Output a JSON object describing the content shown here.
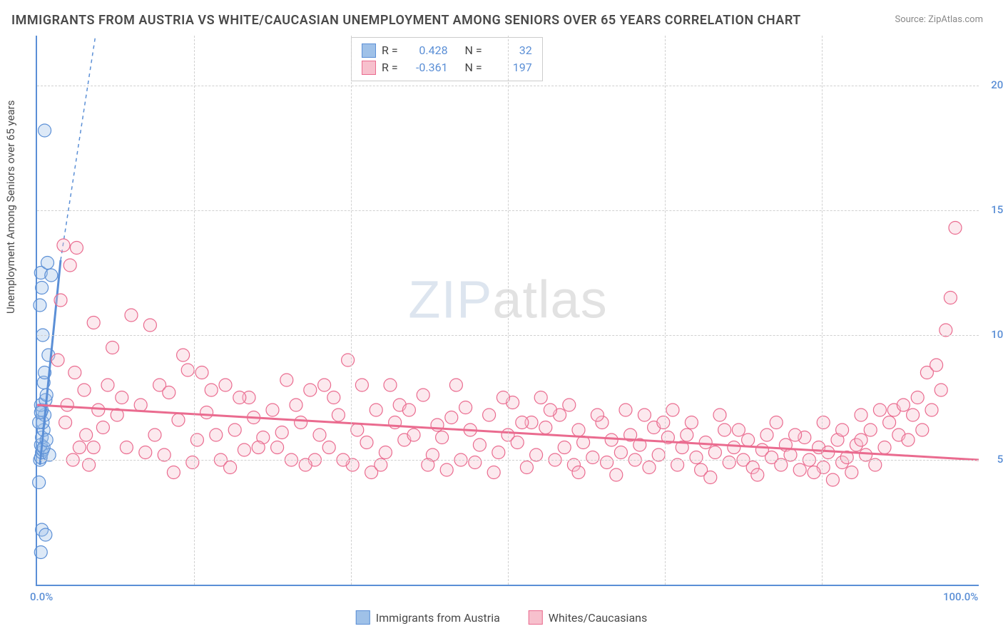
{
  "title": "IMMIGRANTS FROM AUSTRIA VS WHITE/CAUCASIAN UNEMPLOYMENT AMONG SENIORS OVER 65 YEARS CORRELATION CHART",
  "source": "Source: ZipAtlas.com",
  "watermark_bold": "ZIP",
  "watermark_thin": "atlas",
  "y_axis_title": "Unemployment Among Seniors over 65 years",
  "chart": {
    "type": "scatter",
    "xlim": [
      0,
      100
    ],
    "ylim": [
      0,
      22
    ],
    "x_ticks": [
      0,
      100
    ],
    "x_tick_labels": [
      "0.0%",
      "100.0%"
    ],
    "x_minor_ticks": [
      16.67,
      33.33,
      50,
      66.67,
      83.33
    ],
    "y_ticks": [
      5,
      10,
      15,
      20
    ],
    "y_tick_labels": [
      "5.0%",
      "10.0%",
      "15.0%",
      "20.0%"
    ],
    "background_color": "#ffffff",
    "grid_color": "#d0d0d0",
    "axis_color": "#5b8fd6",
    "marker_radius": 9,
    "marker_opacity": 0.35,
    "series": [
      {
        "name": "Immigrants from Austria",
        "color_fill": "#9fc1e8",
        "color_stroke": "#5b8fd6",
        "R": 0.428,
        "N": 32,
        "trend": {
          "x1": 0.3,
          "y1": 4.8,
          "x2": 2.5,
          "y2": 13.0,
          "dashed_extend_x2": 6.2,
          "dashed_extend_y2": 22.0
        },
        "points": [
          [
            0.2,
            4.1
          ],
          [
            0.3,
            5.0
          ],
          [
            0.4,
            5.1
          ],
          [
            0.5,
            5.3
          ],
          [
            0.6,
            5.4
          ],
          [
            0.4,
            5.6
          ],
          [
            0.5,
            5.9
          ],
          [
            0.7,
            6.2
          ],
          [
            0.6,
            6.5
          ],
          [
            0.8,
            6.8
          ],
          [
            0.5,
            7.0
          ],
          [
            0.4,
            7.2
          ],
          [
            0.9,
            7.4
          ],
          [
            1.0,
            7.6
          ],
          [
            0.7,
            8.1
          ],
          [
            0.8,
            8.5
          ],
          [
            1.2,
            9.2
          ],
          [
            0.6,
            10.0
          ],
          [
            0.3,
            11.2
          ],
          [
            0.5,
            11.9
          ],
          [
            0.4,
            12.5
          ],
          [
            1.5,
            12.4
          ],
          [
            1.1,
            12.9
          ],
          [
            0.8,
            18.2
          ],
          [
            0.5,
            2.2
          ],
          [
            0.9,
            2.0
          ],
          [
            0.4,
            1.3
          ],
          [
            1.3,
            5.2
          ],
          [
            0.7,
            5.5
          ],
          [
            0.2,
            6.5
          ],
          [
            0.4,
            6.9
          ],
          [
            1.0,
            5.8
          ]
        ]
      },
      {
        "name": "Whites/Caucasians",
        "color_fill": "#f7c0cd",
        "color_stroke": "#ea6b8f",
        "R": -0.361,
        "N": 197,
        "trend": {
          "x1": 0,
          "y1": 7.2,
          "x2": 100,
          "y2": 5.0
        },
        "points": [
          [
            2.5,
            11.4
          ],
          [
            2.8,
            13.6
          ],
          [
            3,
            6.5
          ],
          [
            3.2,
            7.2
          ],
          [
            3.5,
            12.8
          ],
          [
            4,
            8.5
          ],
          [
            4.5,
            5.5
          ],
          [
            5,
            7.8
          ],
          [
            5.2,
            6.0
          ],
          [
            6,
            10.5
          ],
          [
            6.5,
            7.0
          ],
          [
            7,
            6.3
          ],
          [
            7.5,
            8.0
          ],
          [
            8,
            9.5
          ],
          [
            8.5,
            6.8
          ],
          [
            9,
            7.5
          ],
          [
            10,
            10.8
          ],
          [
            11,
            7.2
          ],
          [
            12,
            10.4
          ],
          [
            12.5,
            6.0
          ],
          [
            13,
            8.0
          ],
          [
            13.5,
            5.2
          ],
          [
            14,
            7.7
          ],
          [
            15,
            6.6
          ],
          [
            16,
            8.6
          ],
          [
            16.5,
            4.9
          ],
          [
            17,
            5.8
          ],
          [
            18,
            6.9
          ],
          [
            18.5,
            7.8
          ],
          [
            19,
            6.0
          ],
          [
            20,
            8.0
          ],
          [
            21,
            6.2
          ],
          [
            22,
            5.4
          ],
          [
            22.5,
            7.5
          ],
          [
            23,
            6.7
          ],
          [
            24,
            5.9
          ],
          [
            25,
            7.0
          ],
          [
            26,
            6.1
          ],
          [
            27,
            5.0
          ],
          [
            28,
            6.5
          ],
          [
            29,
            7.8
          ],
          [
            30,
            6.0
          ],
          [
            30.5,
            8.0
          ],
          [
            31,
            5.5
          ],
          [
            32,
            6.8
          ],
          [
            33,
            9.0
          ],
          [
            33.5,
            4.8
          ],
          [
            34,
            6.2
          ],
          [
            35,
            5.7
          ],
          [
            36,
            7.0
          ],
          [
            37,
            5.3
          ],
          [
            38,
            6.5
          ],
          [
            38.5,
            7.2
          ],
          [
            39,
            5.8
          ],
          [
            40,
            6.0
          ],
          [
            41,
            7.6
          ],
          [
            42,
            5.2
          ],
          [
            42.5,
            6.4
          ],
          [
            43,
            5.9
          ],
          [
            44,
            6.7
          ],
          [
            45,
            5.0
          ],
          [
            45.5,
            7.1
          ],
          [
            46,
            6.2
          ],
          [
            47,
            5.6
          ],
          [
            48,
            6.8
          ],
          [
            49,
            5.3
          ],
          [
            50,
            6.0
          ],
          [
            50.5,
            7.3
          ],
          [
            51,
            5.7
          ],
          [
            52,
            4.7
          ],
          [
            52.5,
            6.5
          ],
          [
            53,
            5.2
          ],
          [
            54,
            6.3
          ],
          [
            55,
            5.0
          ],
          [
            55.5,
            6.8
          ],
          [
            56,
            5.5
          ],
          [
            57,
            4.8
          ],
          [
            57.5,
            6.2
          ],
          [
            58,
            5.7
          ],
          [
            59,
            5.1
          ],
          [
            60,
            6.5
          ],
          [
            60.5,
            4.9
          ],
          [
            61,
            5.8
          ],
          [
            62,
            5.3
          ],
          [
            63,
            6.0
          ],
          [
            63.5,
            5.0
          ],
          [
            64,
            5.6
          ],
          [
            65,
            4.7
          ],
          [
            65.5,
            6.3
          ],
          [
            66,
            5.2
          ],
          [
            67,
            5.9
          ],
          [
            68,
            4.8
          ],
          [
            68.5,
            5.5
          ],
          [
            69,
            6.0
          ],
          [
            70,
            5.1
          ],
          [
            70.5,
            4.6
          ],
          [
            71,
            5.7
          ],
          [
            72,
            5.3
          ],
          [
            73,
            6.2
          ],
          [
            73.5,
            4.9
          ],
          [
            74,
            5.5
          ],
          [
            75,
            5.0
          ],
          [
            75.5,
            5.8
          ],
          [
            76,
            4.7
          ],
          [
            77,
            5.4
          ],
          [
            77.5,
            6.0
          ],
          [
            78,
            5.1
          ],
          [
            79,
            4.8
          ],
          [
            79.5,
            5.6
          ],
          [
            80,
            5.2
          ],
          [
            81,
            4.6
          ],
          [
            81.5,
            5.9
          ],
          [
            82,
            5.0
          ],
          [
            83,
            5.5
          ],
          [
            83.5,
            4.7
          ],
          [
            84,
            5.3
          ],
          [
            85,
            5.8
          ],
          [
            85.5,
            4.9
          ],
          [
            86,
            5.1
          ],
          [
            87,
            5.6
          ],
          [
            87.5,
            6.8
          ],
          [
            88,
            5.2
          ],
          [
            88.5,
            6.2
          ],
          [
            89,
            4.8
          ],
          [
            89.5,
            7.0
          ],
          [
            90,
            5.5
          ],
          [
            90.5,
            6.5
          ],
          [
            91,
            7.0
          ],
          [
            91.5,
            6.0
          ],
          [
            92,
            7.2
          ],
          [
            92.5,
            5.8
          ],
          [
            93,
            6.8
          ],
          [
            93.5,
            7.5
          ],
          [
            94,
            6.2
          ],
          [
            94.5,
            8.5
          ],
          [
            95,
            7.0
          ],
          [
            95.5,
            8.8
          ],
          [
            96,
            7.8
          ],
          [
            96.5,
            10.2
          ],
          [
            97,
            11.5
          ],
          [
            97.5,
            14.3
          ],
          [
            4.2,
            13.5
          ],
          [
            2.2,
            9.0
          ],
          [
            3.8,
            5.0
          ],
          [
            5.5,
            4.8
          ],
          [
            14.5,
            4.5
          ],
          [
            35.5,
            4.5
          ],
          [
            43.5,
            4.6
          ],
          [
            48.5,
            4.5
          ],
          [
            61.5,
            4.4
          ],
          [
            71.5,
            4.3
          ],
          [
            76.5,
            4.4
          ],
          [
            82.5,
            4.5
          ],
          [
            84.5,
            4.2
          ],
          [
            86.5,
            4.5
          ],
          [
            54.5,
            7.0
          ],
          [
            56.5,
            7.2
          ],
          [
            62.5,
            7.0
          ],
          [
            64.5,
            6.8
          ],
          [
            66.5,
            6.5
          ],
          [
            67.5,
            7.0
          ],
          [
            69.5,
            6.5
          ],
          [
            72.5,
            6.8
          ],
          [
            74.5,
            6.2
          ],
          [
            78.5,
            6.5
          ],
          [
            80.5,
            6.0
          ],
          [
            83.5,
            6.5
          ],
          [
            85.5,
            6.2
          ],
          [
            87.5,
            5.8
          ],
          [
            34.5,
            8.0
          ],
          [
            36.5,
            4.8
          ],
          [
            25.5,
            5.5
          ],
          [
            27.5,
            7.2
          ],
          [
            29.5,
            5.0
          ],
          [
            31.5,
            7.5
          ],
          [
            39.5,
            7.0
          ],
          [
            41.5,
            4.8
          ],
          [
            44.5,
            8.0
          ],
          [
            46.5,
            4.9
          ],
          [
            49.5,
            7.5
          ],
          [
            51.5,
            6.5
          ],
          [
            53.5,
            7.5
          ],
          [
            57.5,
            4.5
          ],
          [
            59.5,
            6.8
          ],
          [
            19.5,
            5.0
          ],
          [
            21.5,
            7.5
          ],
          [
            23.5,
            5.5
          ],
          [
            9.5,
            5.5
          ],
          [
            11.5,
            5.3
          ],
          [
            6.0,
            5.5
          ],
          [
            15.5,
            9.2
          ],
          [
            17.5,
            8.5
          ],
          [
            20.5,
            4.7
          ],
          [
            26.5,
            8.2
          ],
          [
            28.5,
            4.8
          ],
          [
            32.5,
            5.0
          ],
          [
            37.5,
            8.0
          ]
        ]
      }
    ]
  },
  "legend": {
    "top": {
      "r_label": "R =",
      "n_label": "N ="
    },
    "bottom": [
      {
        "label": "Immigrants from Austria",
        "fill": "#9fc1e8",
        "stroke": "#5b8fd6"
      },
      {
        "label": "Whites/Caucasians",
        "fill": "#f7c0cd",
        "stroke": "#ea6b8f"
      }
    ]
  }
}
